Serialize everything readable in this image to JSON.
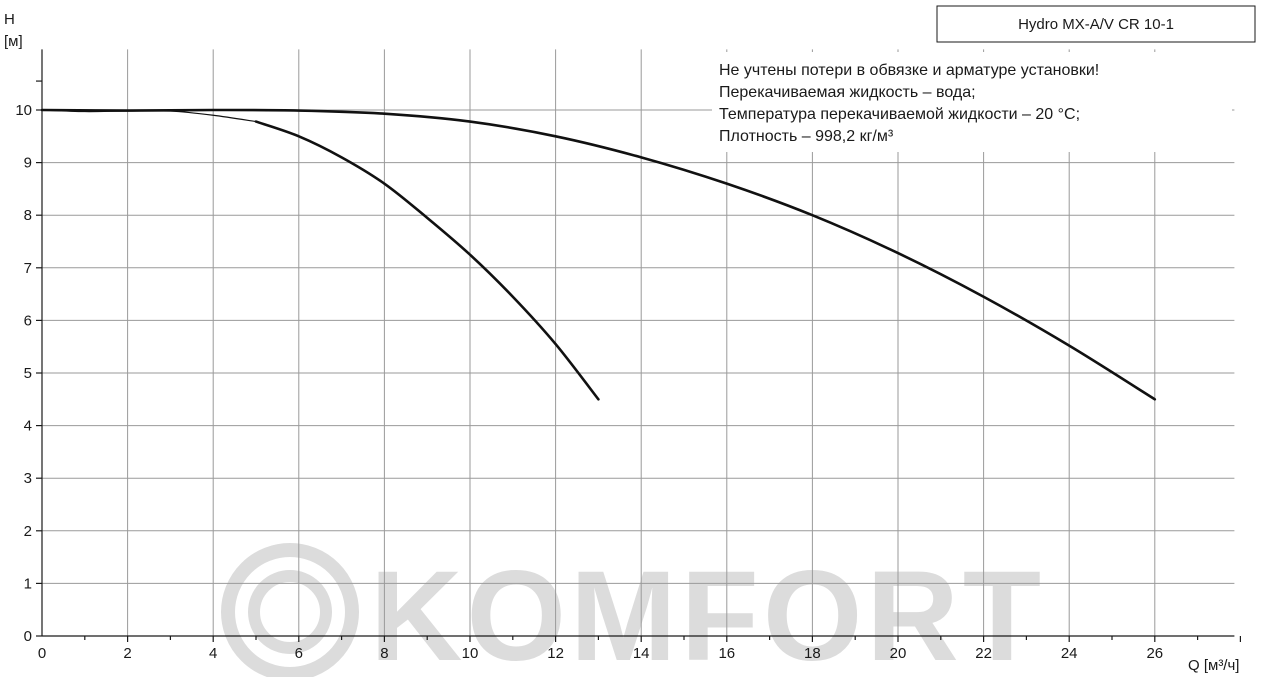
{
  "chart_data": {
    "type": "line",
    "title_box": "Hydro MX-A/V CR 10-1",
    "notes": [
      "Не учтены потери в обвязке и арматуре установки!",
      "Перекачиваемая жидкость – вода;",
      "Температура перекачиваемой жидкости – 20 °C;",
      "Плотность – 998,2 кг/м³"
    ],
    "ylabel_top": "H",
    "ylabel_unit": "[м]",
    "xlabel": "Q [м³/ч]",
    "xlim": [
      0,
      28
    ],
    "ylim": [
      0,
      11
    ],
    "x_ticks": [
      0,
      2,
      4,
      6,
      8,
      10,
      12,
      14,
      16,
      18,
      20,
      22,
      24,
      26
    ],
    "y_ticks": [
      0,
      1,
      2,
      3,
      4,
      5,
      6,
      7,
      8,
      9,
      10
    ],
    "series": [
      {
        "x": [
          0,
          1,
          2,
          3,
          4,
          5,
          6,
          7,
          8,
          9,
          10,
          11,
          12,
          13
        ],
        "values": [
          10.0,
          9.97,
          9.98,
          9.98,
          9.9,
          9.78,
          9.5,
          9.1,
          8.6,
          7.95,
          7.25,
          6.45,
          5.55,
          4.5
        ]
      },
      {
        "x": [
          0,
          2,
          4,
          6,
          8,
          10,
          12,
          14,
          16,
          18,
          20,
          22,
          24,
          26
        ],
        "values": [
          10.0,
          9.99,
          10.0,
          9.99,
          9.93,
          9.78,
          9.5,
          9.1,
          8.6,
          8.0,
          7.28,
          6.45,
          5.52,
          4.5
        ]
      }
    ],
    "grid": true,
    "watermark": "KOMFORT"
  }
}
